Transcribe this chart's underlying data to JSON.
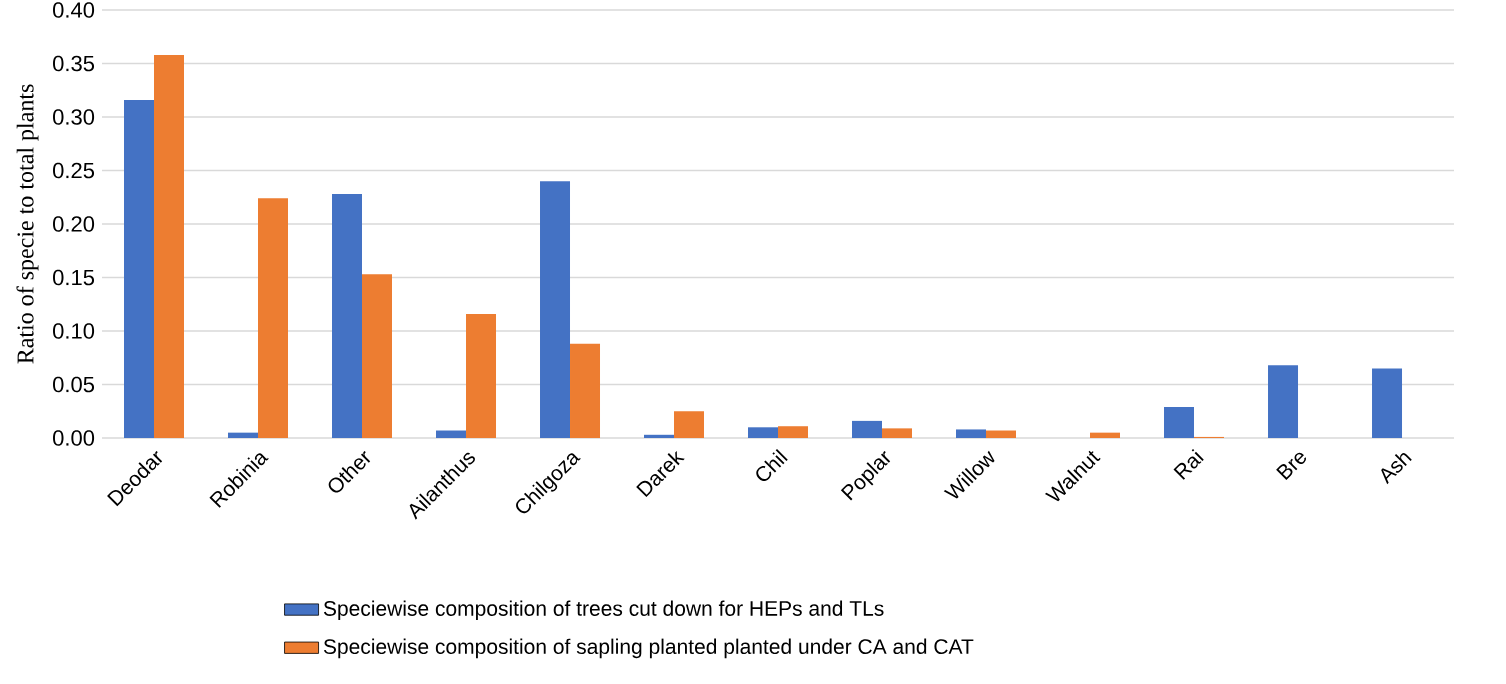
{
  "chart_data": {
    "type": "bar",
    "ylabel": "Ratio of specie to total plants",
    "categories": [
      "Deodar",
      "Robinia",
      "Other",
      "Ailanthus",
      "Chilgoza",
      "Darek",
      "Chil",
      "Poplar",
      "Willow",
      "Walnut",
      "Rai",
      "Bre",
      "Ash"
    ],
    "series": [
      {
        "name": "Speciewise composition of trees cut down for HEPs and TLs",
        "color": "#4472c4",
        "values": [
          0.316,
          0.005,
          0.228,
          0.007,
          0.24,
          0.003,
          0.01,
          0.016,
          0.008,
          null,
          0.029,
          0.068,
          0.065
        ]
      },
      {
        "name": "Speciewise composition of sapling planted planted under CA and CAT",
        "color": "#ed7d31",
        "values": [
          0.358,
          0.224,
          0.153,
          0.116,
          0.088,
          0.025,
          0.011,
          0.009,
          0.007,
          0.005,
          0.001,
          null,
          null
        ]
      }
    ],
    "ylim": [
      0,
      0.4
    ],
    "yticks": [
      {
        "value": 0,
        "label": "0.00"
      },
      {
        "value": 0.05,
        "label": "0.05"
      },
      {
        "value": 0.1,
        "label": "0.10"
      },
      {
        "value": 0.15,
        "label": "0.15"
      },
      {
        "value": 0.2,
        "label": "0.20"
      },
      {
        "value": 0.25,
        "label": "0.25"
      },
      {
        "value": 0.3,
        "label": "0.30"
      },
      {
        "value": 0.35,
        "label": "0.35"
      },
      {
        "value": 0.4,
        "label": "0.40"
      }
    ],
    "grid": "y",
    "legend": "bottom"
  }
}
